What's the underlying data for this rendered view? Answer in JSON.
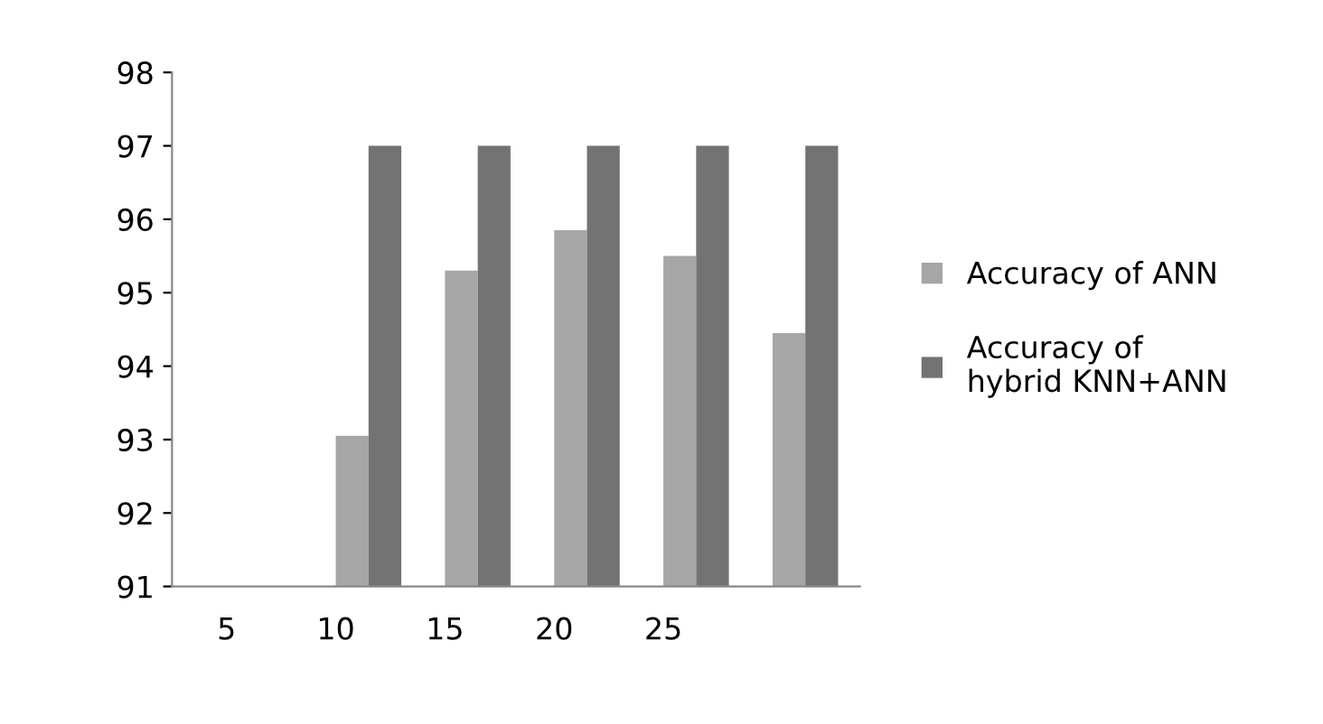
{
  "chart_data": {
    "type": "bar",
    "categories": [
      "5",
      "10",
      "15",
      "20",
      "25",
      null
    ],
    "series": [
      {
        "name": "Accuracy of ANN",
        "color": "#a6a6a6",
        "values": [
          null,
          93.05,
          95.3,
          95.85,
          95.5,
          94.45
        ]
      },
      {
        "name": "Accuracy of\nhybrid KNN+ANN",
        "color": "#737373",
        "values": [
          null,
          97,
          97,
          97,
          97,
          97
        ]
      }
    ],
    "ylim": [
      91,
      98
    ],
    "yticks": [
      91,
      92,
      93,
      94,
      95,
      96,
      97,
      98
    ],
    "grid": false,
    "legend": "right"
  }
}
